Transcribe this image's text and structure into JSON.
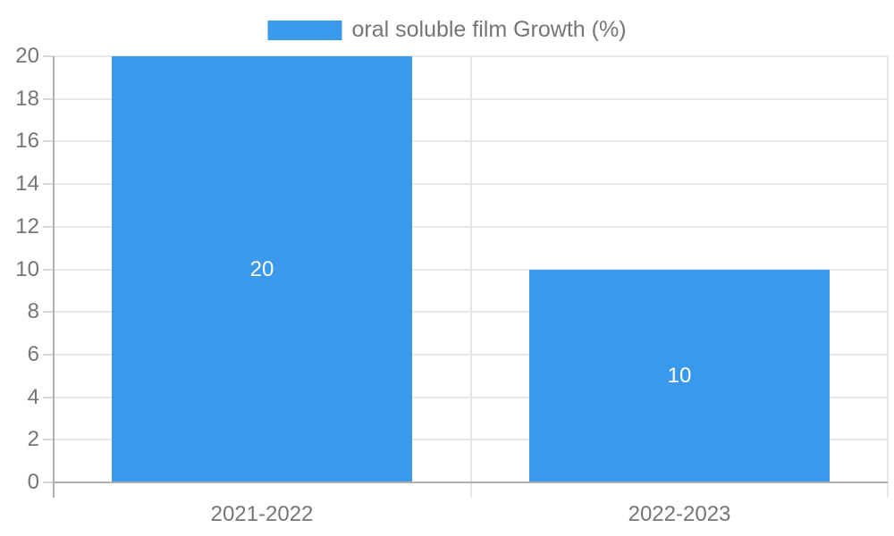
{
  "chart_data": {
    "type": "bar",
    "title": "oral soluble film Growth (%)",
    "categories": [
      "2021-2022",
      "2022-2023"
    ],
    "series": [
      {
        "name": "oral soluble film Growth (%)",
        "values": [
          20,
          10
        ]
      }
    ],
    "data_labels": [
      "20",
      "10"
    ],
    "xlabel": "",
    "ylabel": "",
    "ylim": [
      0,
      20
    ],
    "ytick_step": 2,
    "yticks": [
      0,
      2,
      4,
      6,
      8,
      10,
      12,
      14,
      16,
      18,
      20
    ],
    "grid": true,
    "legend_position": "top-center",
    "colors": {
      "bar": "#3B99EC",
      "gridline": "#E7E7E7",
      "axis_line": "#AFAFAF",
      "tick_mark": "#D8D8D8",
      "tick_label": "#757575",
      "legend_text": "#757575",
      "data_label": "#FFFFFF",
      "background": "#FFFFFF"
    }
  }
}
